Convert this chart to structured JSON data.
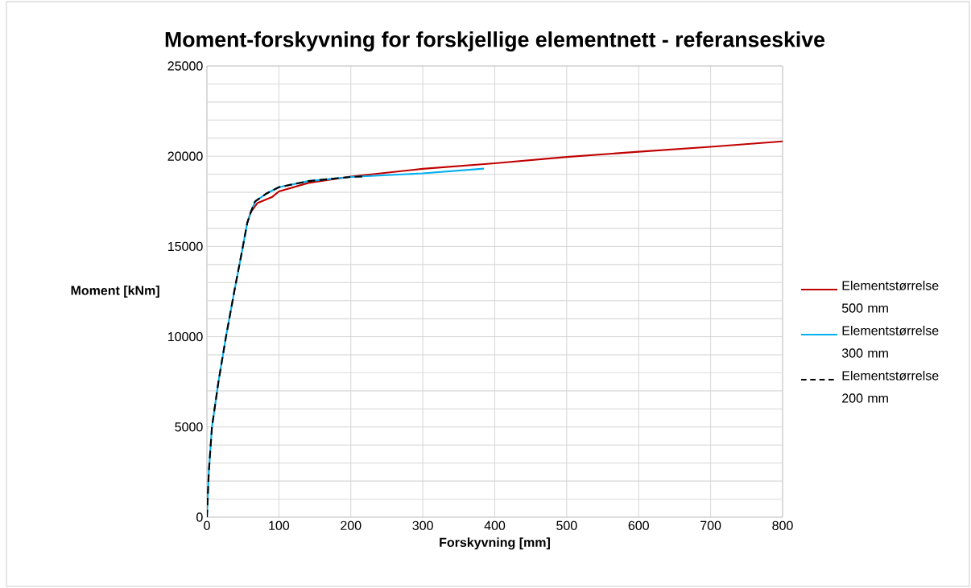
{
  "chart_data": {
    "type": "line",
    "title": "Moment-forskyvning for forskjellige elementnett - referanseskive",
    "xlabel": "Forskyvning [mm]",
    "ylabel": "Moment [kNm]",
    "xlim": [
      0,
      800
    ],
    "xticks": [
      0,
      100,
      200,
      300,
      400,
      500,
      600,
      700,
      800
    ],
    "ylim": [
      0,
      25000
    ],
    "yticks": [
      0,
      {
        "value": 1000,
        "label": null
      },
      {
        "value": 2000,
        "label": null
      },
      {
        "value": 3000,
        "label": null
      },
      {
        "value": 4000,
        "label": null
      },
      5000,
      {
        "value": 6000,
        "label": null
      },
      {
        "value": 7000,
        "label": null
      },
      {
        "value": 8000,
        "label": null
      },
      {
        "value": 9000,
        "label": null
      },
      10000,
      {
        "value": 11000,
        "label": null
      },
      {
        "value": 12000,
        "label": null
      },
      {
        "value": 13000,
        "label": null
      },
      {
        "value": 14000,
        "label": null
      },
      15000,
      {
        "value": 16000,
        "label": null
      },
      {
        "value": 17000,
        "label": null
      },
      {
        "value": 18000,
        "label": null
      },
      {
        "value": 19000,
        "label": null
      },
      20000,
      {
        "value": 21000,
        "label": null
      },
      {
        "value": 22000,
        "label": null
      },
      {
        "value": 23000,
        "label": null
      },
      {
        "value": 24000,
        "label": null
      },
      25000
    ],
    "grid": true,
    "legend": "right",
    "marker": "none",
    "series": [
      {
        "name": "Elementstørrelse 500 mm",
        "color": "#c00000",
        "line_style": "solid",
        "x": [
          56,
          61,
          70,
          91,
          100,
          141,
          200,
          300,
          400,
          500,
          600,
          700,
          800
        ],
        "values": [
          16300,
          16900,
          17400,
          17750,
          18050,
          18520,
          18870,
          19300,
          19610,
          19960,
          20250,
          20520,
          20820
        ]
      },
      {
        "name": "Elementstørrelse 300 mm",
        "color": "#00b0f0",
        "line_style": "solid",
        "x": [
          0,
          2.6,
          7,
          16,
          26.5,
          38,
          50,
          56,
          61,
          67,
          83.5,
          100,
          141,
          200,
          300,
          385
        ],
        "values": [
          0,
          2500,
          5000,
          7500,
          10000,
          12500,
          15000,
          16300,
          16900,
          17500,
          17950,
          18280,
          18620,
          18850,
          19050,
          19310
        ]
      },
      {
        "name": "Elementstørrelse 200 mm",
        "color": "#000000",
        "line_style": "dashed",
        "x": [
          0,
          2.6,
          7,
          16,
          26.5,
          38,
          50,
          56,
          61,
          67,
          83.5,
          100,
          141,
          200,
          216
        ],
        "values": [
          0,
          2500,
          5000,
          7500,
          10000,
          12500,
          15000,
          16300,
          16900,
          17500,
          17950,
          18280,
          18620,
          18850,
          18880
        ]
      }
    ]
  }
}
